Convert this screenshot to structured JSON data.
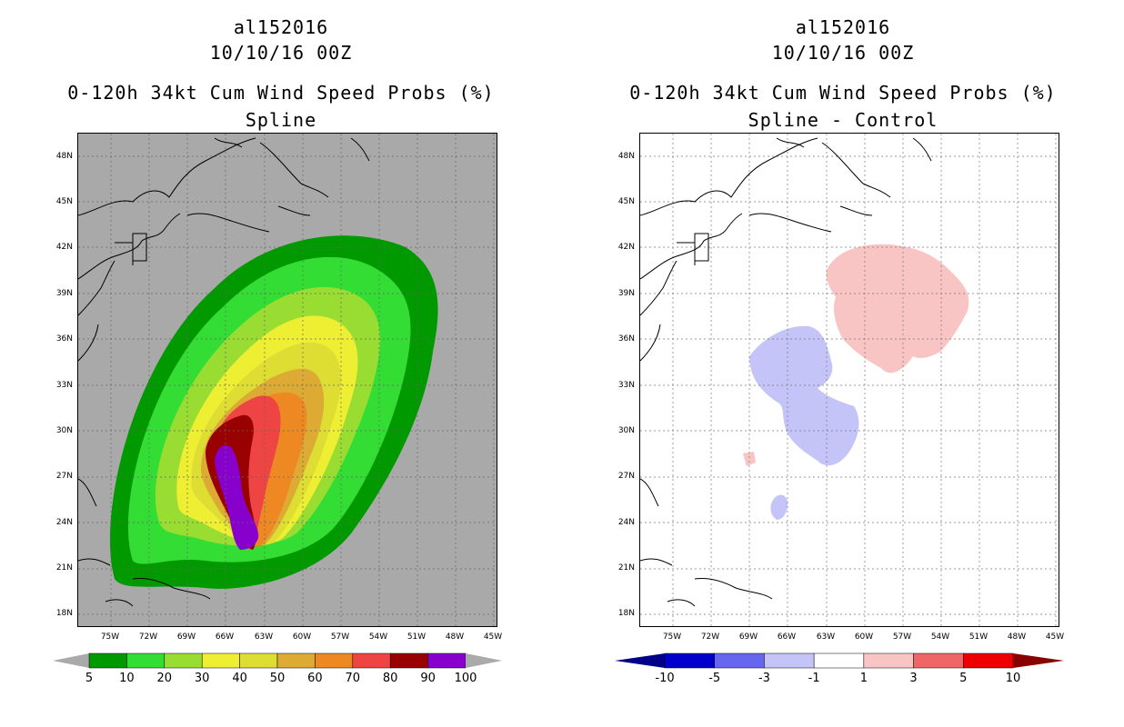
{
  "left": {
    "storm_id": "al152016",
    "datetime": "10/10/16 00Z",
    "product": "0-120h 34kt Cum Wind Speed Probs (%)",
    "subtitle": "Spline",
    "colorbar": {
      "labels": [
        "5",
        "10",
        "20",
        "30",
        "40",
        "50",
        "60",
        "70",
        "80",
        "90",
        "100"
      ],
      "colors": [
        "#009900",
        "#33dd33",
        "#99dd33",
        "#eeee33",
        "#dddd33",
        "#ddaa33",
        "#ee8822",
        "#ee4444",
        "#990000",
        "#8800cc"
      ]
    }
  },
  "right": {
    "storm_id": "al152016",
    "datetime": "10/10/16 00Z",
    "product": "0-120h 34kt Cum Wind Speed Probs (%)",
    "subtitle": "Spline - Control",
    "colorbar": {
      "labels": [
        "-10",
        "-5",
        "-3",
        "-1",
        "1",
        "3",
        "5",
        "10"
      ],
      "colors": [
        "#0000cc",
        "#6666ee",
        "#c4c4f8",
        "#ffffff",
        "#f8c4c4",
        "#ee6666",
        "#ee0000"
      ]
    }
  },
  "axes": {
    "lat_labels": [
      "48N",
      "45N",
      "42N",
      "39N",
      "36N",
      "33N",
      "30N",
      "27N",
      "24N",
      "21N",
      "18N"
    ],
    "lon_labels": [
      "75W",
      "72W",
      "69W",
      "66W",
      "63W",
      "60W",
      "57W",
      "54W",
      "51W",
      "48W",
      "45W"
    ]
  },
  "colors": {
    "ocean_left": "#a9a9a9",
    "ocean_right": "#ffffff",
    "grid": "#888888"
  }
}
